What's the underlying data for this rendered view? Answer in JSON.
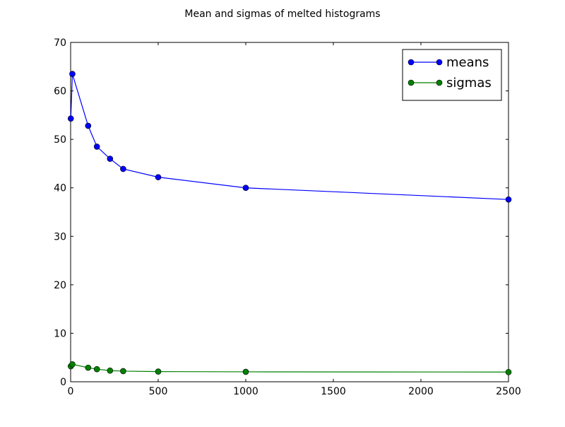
{
  "chart_data": {
    "type": "line",
    "title": "Mean and sigmas of melted histograms",
    "xlabel": "",
    "ylabel": "",
    "xlim": [
      0,
      2500
    ],
    "ylim": [
      0,
      70
    ],
    "x_ticks": [
      0,
      500,
      1000,
      1500,
      2000,
      2500
    ],
    "y_ticks": [
      0,
      10,
      20,
      30,
      40,
      50,
      60,
      70
    ],
    "grid": false,
    "legend_position": "top-right",
    "x": [
      1,
      10,
      100,
      150,
      225,
      300,
      500,
      1000,
      2500
    ],
    "series": [
      {
        "name": "means",
        "color": "#0000ff",
        "marker": "circle",
        "values": [
          54.3,
          63.5,
          52.8,
          48.5,
          46.0,
          43.9,
          42.2,
          40.0,
          37.6
        ]
      },
      {
        "name": "sigmas",
        "color": "#008000",
        "marker": "circle",
        "values": [
          3.2,
          3.6,
          2.9,
          2.6,
          2.3,
          2.2,
          2.1,
          2.05,
          2.0
        ]
      }
    ]
  }
}
